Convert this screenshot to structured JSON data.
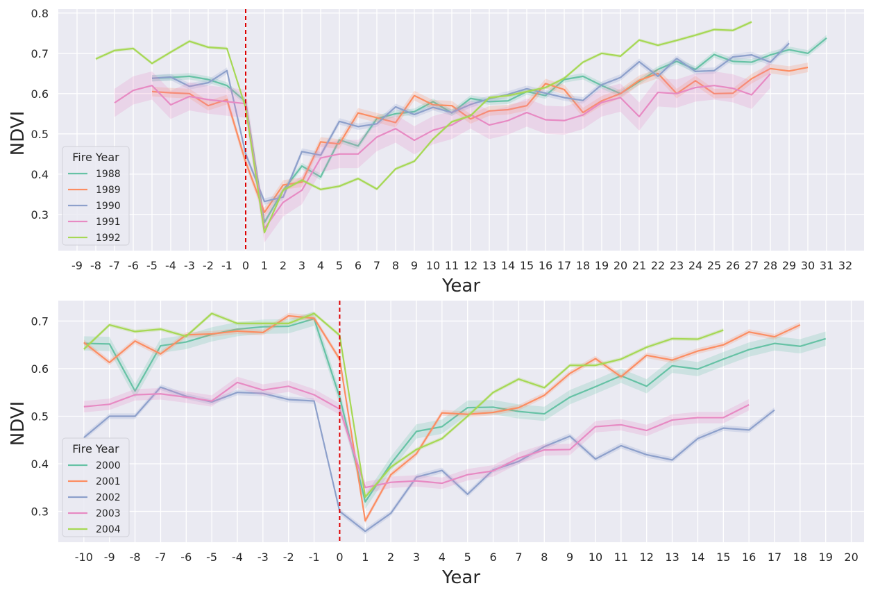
{
  "chart_data": [
    {
      "type": "line",
      "xlabel": "Year",
      "ylabel": "NDVI",
      "xlim": [
        -10,
        33
      ],
      "ylim": [
        0.21,
        0.81
      ],
      "xticks": [
        -9,
        -8,
        -7,
        -6,
        -5,
        -4,
        -3,
        -2,
        -1,
        0,
        1,
        2,
        3,
        4,
        5,
        6,
        7,
        8,
        9,
        10,
        11,
        12,
        13,
        14,
        15,
        16,
        17,
        18,
        19,
        20,
        21,
        22,
        23,
        24,
        25,
        26,
        27,
        28,
        29,
        30,
        31,
        32
      ],
      "yticks": [
        0.3,
        0.4,
        0.5,
        0.6,
        0.7,
        0.8
      ],
      "ytick_labels": [
        "0.3",
        "0.4",
        "0.5",
        "0.6",
        "0.7",
        "0.8"
      ],
      "vline": 0,
      "vline_color": "#dd0000",
      "grid": true,
      "legend": {
        "title": "Fire Year",
        "placement": "lower-left"
      },
      "series": [
        {
          "name": "1988",
          "color": "#66c2a5",
          "band": 0.008,
          "x": [
            -5,
            -4,
            -3,
            -2,
            -1,
            0,
            1,
            2,
            3,
            4,
            5,
            6,
            7,
            8,
            9,
            10,
            11,
            12,
            13,
            14,
            15,
            16,
            17,
            18,
            19,
            20,
            21,
            22,
            23,
            24,
            25,
            26,
            27,
            28,
            29,
            30,
            31
          ],
          "y": [
            0.638,
            0.64,
            0.643,
            0.635,
            0.62,
            0.58,
            0.28,
            0.36,
            0.42,
            0.393,
            0.485,
            0.47,
            0.538,
            0.55,
            0.555,
            0.58,
            0.552,
            0.588,
            0.58,
            0.582,
            0.605,
            0.595,
            0.635,
            0.643,
            0.62,
            0.6,
            0.63,
            0.66,
            0.68,
            0.66,
            0.697,
            0.68,
            0.678,
            0.696,
            0.709,
            0.7,
            0.738
          ]
        },
        {
          "name": "1989",
          "color": "#fc8d62",
          "band": 0.012,
          "x": [
            -5,
            -4,
            -3,
            -2,
            -1,
            0,
            1,
            2,
            3,
            4,
            5,
            6,
            7,
            8,
            9,
            10,
            11,
            12,
            13,
            14,
            15,
            16,
            17,
            18,
            19,
            20,
            21,
            22,
            23,
            24,
            25,
            26,
            27,
            28,
            29,
            30
          ],
          "y": [
            0.605,
            0.602,
            0.6,
            0.57,
            0.585,
            0.43,
            0.305,
            0.373,
            0.38,
            0.48,
            0.475,
            0.552,
            0.54,
            0.528,
            0.595,
            0.572,
            0.57,
            0.537,
            0.557,
            0.56,
            0.57,
            0.625,
            0.61,
            0.553,
            0.582,
            0.6,
            0.633,
            0.65,
            0.6,
            0.632,
            0.6,
            0.601,
            0.637,
            0.662,
            0.656,
            0.665
          ]
        },
        {
          "name": "1990",
          "color": "#8da0cb",
          "band": 0.008,
          "x": [
            -5,
            -4,
            -3,
            -2,
            -1,
            0,
            1,
            2,
            3,
            4,
            5,
            6,
            7,
            8,
            9,
            10,
            11,
            12,
            13,
            14,
            15,
            16,
            17,
            18,
            19,
            20,
            21,
            22,
            23,
            24,
            25,
            26,
            27,
            28,
            29
          ],
          "y": [
            0.638,
            0.641,
            0.618,
            0.627,
            0.657,
            0.45,
            0.332,
            0.343,
            0.456,
            0.447,
            0.531,
            0.518,
            0.525,
            0.567,
            0.548,
            0.566,
            0.553,
            0.573,
            0.587,
            0.598,
            0.612,
            0.601,
            0.59,
            0.583,
            0.622,
            0.64,
            0.679,
            0.643,
            0.687,
            0.655,
            0.657,
            0.691,
            0.696,
            0.678,
            0.725
          ]
        },
        {
          "name": "1991",
          "color": "#e78ac3",
          "band": 0.035,
          "x": [
            -7,
            -6,
            -5,
            -4,
            -3,
            -2,
            -1,
            0,
            1,
            2,
            3,
            4,
            5,
            6,
            7,
            8,
            9,
            10,
            11,
            12,
            13,
            14,
            15,
            16,
            17,
            18,
            19,
            20,
            21,
            22,
            23,
            24,
            25,
            26,
            27,
            28
          ],
          "y": [
            0.577,
            0.608,
            0.62,
            0.572,
            0.593,
            0.585,
            0.58,
            0.575,
            0.265,
            0.33,
            0.36,
            0.44,
            0.45,
            0.45,
            0.492,
            0.513,
            0.484,
            0.509,
            0.522,
            0.548,
            0.522,
            0.533,
            0.553,
            0.535,
            0.533,
            0.547,
            0.578,
            0.59,
            0.543,
            0.603,
            0.6,
            0.615,
            0.62,
            0.613,
            0.597,
            0.649
          ]
        },
        {
          "name": "1992",
          "color": "#a6d854",
          "band": 0.004,
          "x": [
            -8,
            -7,
            -6,
            -5,
            -4,
            -3,
            -2,
            -1,
            0,
            1,
            2,
            3,
            4,
            5,
            6,
            7,
            8,
            9,
            10,
            11,
            12,
            13,
            14,
            15,
            16,
            17,
            18,
            19,
            20,
            21,
            22,
            23,
            24,
            25,
            26,
            27
          ],
          "y": [
            0.686,
            0.707,
            0.712,
            0.675,
            0.703,
            0.73,
            0.715,
            0.712,
            0.565,
            0.255,
            0.36,
            0.385,
            0.362,
            0.37,
            0.389,
            0.363,
            0.413,
            0.432,
            0.487,
            0.53,
            0.545,
            0.59,
            0.595,
            0.605,
            0.615,
            0.638,
            0.678,
            0.7,
            0.693,
            0.733,
            0.72,
            0.732,
            0.745,
            0.759,
            0.757,
            0.778
          ]
        }
      ]
    },
    {
      "type": "line",
      "xlabel": "Year",
      "ylabel": "NDVI",
      "xlim": [
        -11,
        20.5
      ],
      "ylim": [
        0.235,
        0.743
      ],
      "xticks": [
        -10,
        -9,
        -8,
        -7,
        -6,
        -5,
        -4,
        -3,
        -2,
        -1,
        0,
        1,
        2,
        3,
        4,
        5,
        6,
        7,
        8,
        9,
        10,
        11,
        12,
        13,
        14,
        15,
        16,
        17,
        18,
        19,
        20
      ],
      "yticks": [
        0.3,
        0.4,
        0.5,
        0.6,
        0.7
      ],
      "ytick_labels": [
        "0.3",
        "0.4",
        "0.5",
        "0.6",
        "0.7"
      ],
      "vline": 0,
      "vline_color": "#dd0000",
      "grid": true,
      "legend": {
        "title": "Fire Year",
        "placement": "lower-left"
      },
      "series": [
        {
          "name": "2000",
          "color": "#66c2a5",
          "band": 0.015,
          "x": [
            -10,
            -9,
            -8,
            -7,
            -6,
            -5,
            -4,
            -3,
            -2,
            -1,
            0,
            1,
            2,
            3,
            4,
            5,
            6,
            7,
            8,
            9,
            10,
            11,
            12,
            13,
            14,
            15,
            16,
            17,
            18,
            19
          ],
          "y": [
            0.653,
            0.652,
            0.553,
            0.648,
            0.656,
            0.672,
            0.683,
            0.688,
            0.689,
            0.705,
            0.54,
            0.32,
            0.4,
            0.468,
            0.478,
            0.518,
            0.519,
            0.51,
            0.505,
            0.54,
            0.562,
            0.585,
            0.563,
            0.606,
            0.599,
            0.62,
            0.64,
            0.653,
            0.647,
            0.663
          ]
        },
        {
          "name": "2001",
          "color": "#fc8d62",
          "band": 0.006,
          "x": [
            -10,
            -9,
            -8,
            -7,
            -6,
            -5,
            -4,
            -3,
            -2,
            -1,
            0,
            1,
            2,
            3,
            4,
            5,
            6,
            7,
            8,
            9,
            10,
            11,
            12,
            13,
            14,
            15,
            16,
            17,
            18
          ],
          "y": [
            0.655,
            0.613,
            0.658,
            0.631,
            0.671,
            0.673,
            0.679,
            0.676,
            0.711,
            0.706,
            0.62,
            0.28,
            0.377,
            0.421,
            0.507,
            0.504,
            0.508,
            0.518,
            0.544,
            0.59,
            0.621,
            0.583,
            0.628,
            0.618,
            0.637,
            0.65,
            0.677,
            0.667,
            0.692
          ]
        },
        {
          "name": "2002",
          "color": "#8da0cb",
          "band": 0.006,
          "x": [
            -10,
            -9,
            -8,
            -7,
            -6,
            -5,
            -4,
            -3,
            -2,
            -1,
            0,
            1,
            2,
            3,
            4,
            5,
            6,
            7,
            8,
            9,
            10,
            11,
            12,
            13,
            14,
            15,
            16,
            17
          ],
          "y": [
            0.455,
            0.5,
            0.5,
            0.561,
            0.542,
            0.53,
            0.55,
            0.548,
            0.535,
            0.532,
            0.3,
            0.258,
            0.296,
            0.372,
            0.386,
            0.336,
            0.387,
            0.405,
            0.436,
            0.458,
            0.41,
            0.438,
            0.419,
            0.408,
            0.453,
            0.475,
            0.471,
            0.513
          ]
        },
        {
          "name": "2003",
          "color": "#e78ac3",
          "band": 0.012,
          "x": [
            -10,
            -9,
            -8,
            -7,
            -6,
            -5,
            -4,
            -3,
            -2,
            -1,
            0,
            1,
            2,
            3,
            4,
            5,
            6,
            7,
            8,
            9,
            10,
            11,
            12,
            13,
            14,
            15,
            16
          ],
          "y": [
            0.52,
            0.525,
            0.545,
            0.547,
            0.54,
            0.532,
            0.571,
            0.555,
            0.563,
            0.545,
            0.515,
            0.35,
            0.361,
            0.364,
            0.359,
            0.377,
            0.385,
            0.412,
            0.429,
            0.43,
            0.478,
            0.482,
            0.47,
            0.492,
            0.497,
            0.497,
            0.524
          ]
        },
        {
          "name": "2004",
          "color": "#a6d854",
          "band": 0.004,
          "x": [
            -10,
            -9,
            -8,
            -7,
            -6,
            -5,
            -4,
            -3,
            -2,
            -1,
            0,
            1,
            2,
            3,
            4,
            5,
            6,
            7,
            8,
            9,
            10,
            11,
            12,
            13,
            14,
            15
          ],
          "y": [
            0.641,
            0.692,
            0.678,
            0.683,
            0.668,
            0.716,
            0.695,
            0.695,
            0.695,
            0.716,
            0.67,
            0.33,
            0.393,
            0.43,
            0.453,
            0.5,
            0.55,
            0.578,
            0.56,
            0.607,
            0.607,
            0.62,
            0.645,
            0.663,
            0.662,
            0.681
          ]
        }
      ]
    }
  ]
}
